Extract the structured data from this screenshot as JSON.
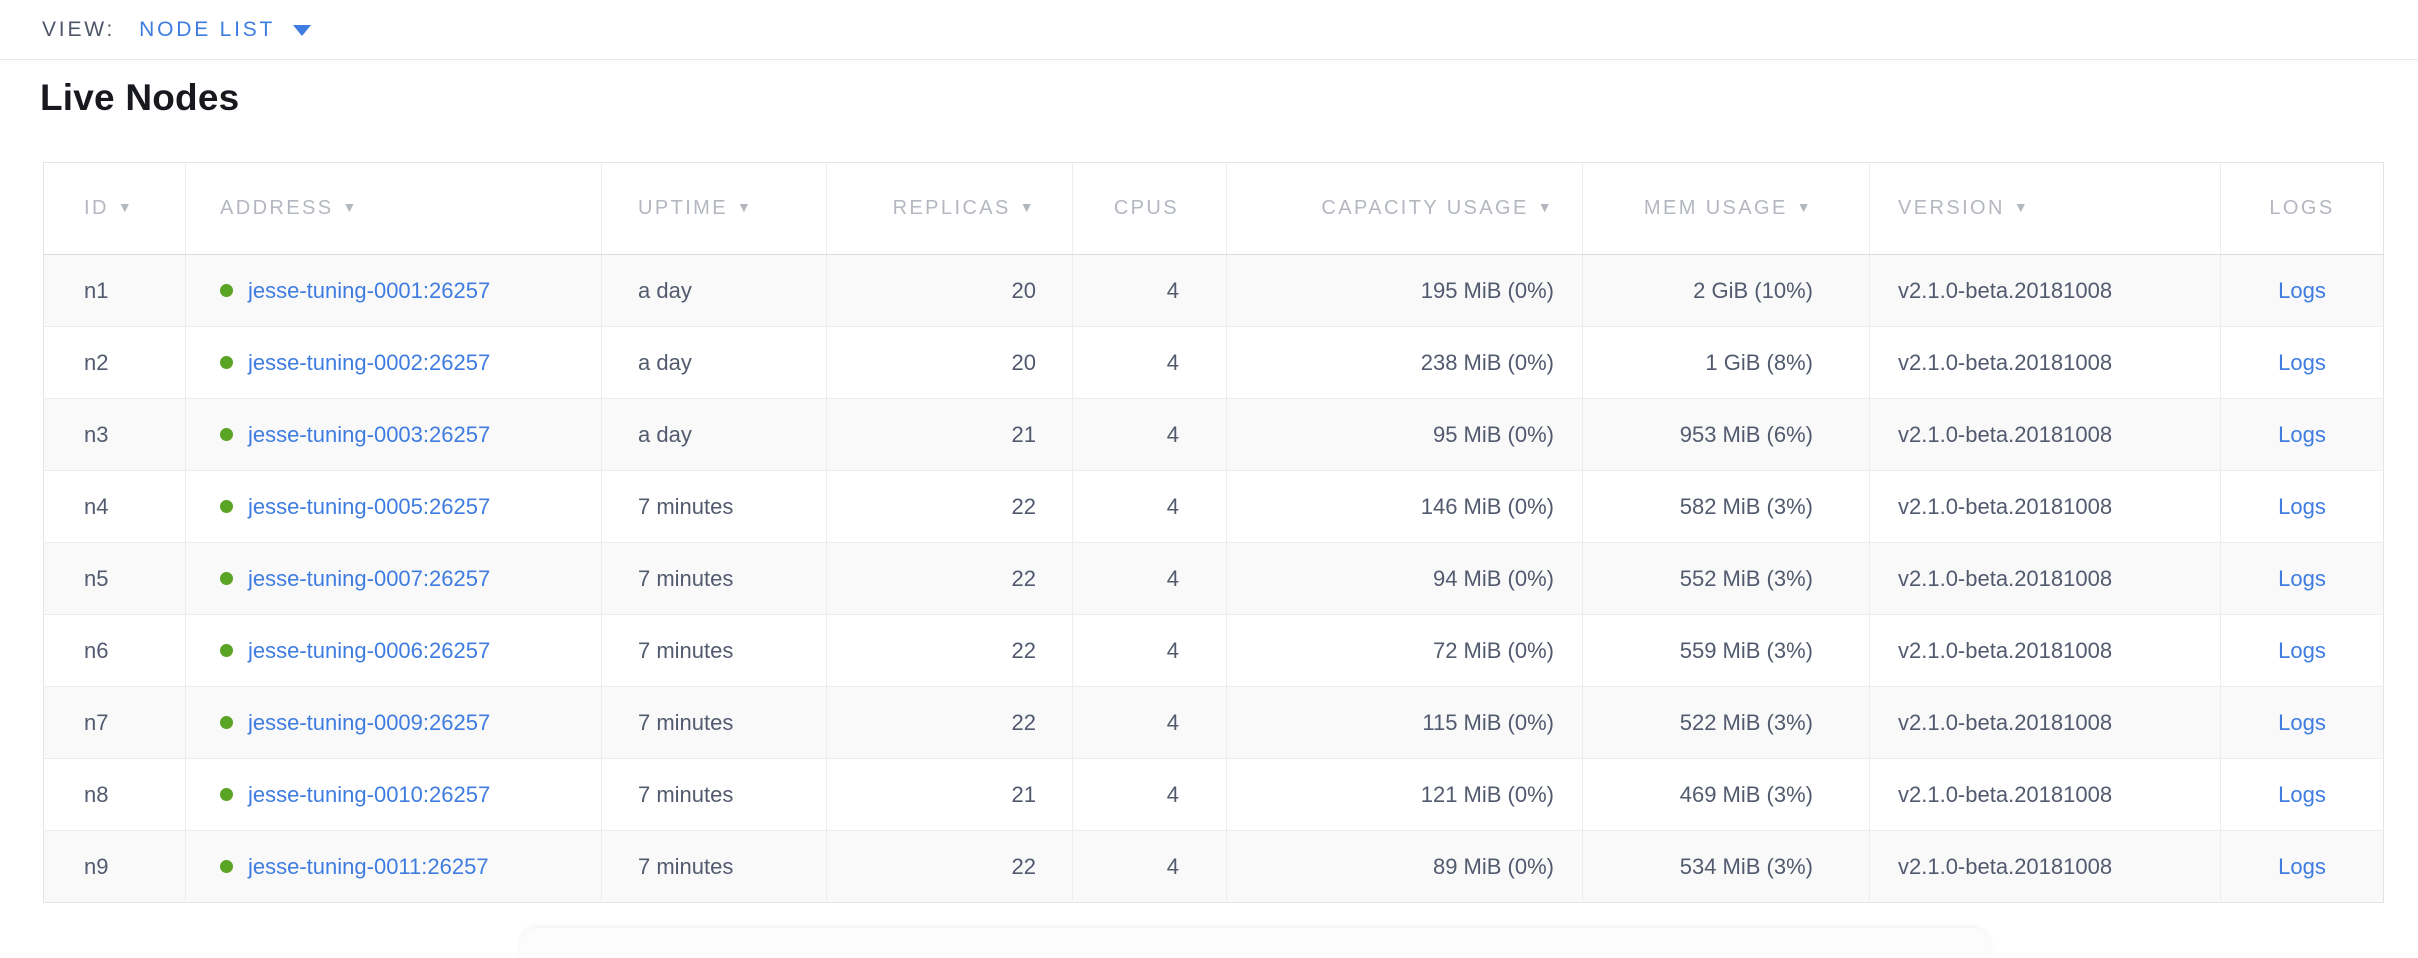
{
  "view_bar": {
    "label": "VIEW:",
    "selected": "NODE LIST"
  },
  "page": {
    "title": "Live Nodes"
  },
  "table": {
    "sort_icon": "▼",
    "columns": [
      {
        "key": "id",
        "label": "ID",
        "sortable": true
      },
      {
        "key": "address",
        "label": "ADDRESS",
        "sortable": true
      },
      {
        "key": "uptime",
        "label": "UPTIME",
        "sortable": true
      },
      {
        "key": "replicas",
        "label": "REPLICAS",
        "sortable": true
      },
      {
        "key": "cpus",
        "label": "CPUS",
        "sortable": false
      },
      {
        "key": "capacity",
        "label": "CAPACITY USAGE",
        "sortable": true
      },
      {
        "key": "mem",
        "label": "MEM USAGE",
        "sortable": true
      },
      {
        "key": "version",
        "label": "VERSION",
        "sortable": true
      },
      {
        "key": "logs",
        "label": "LOGS",
        "sortable": false
      }
    ],
    "rows": [
      {
        "id": "n1",
        "status": "live",
        "address": "jesse-tuning-0001:26257",
        "uptime": "a day",
        "replicas": "20",
        "cpus": "4",
        "capacity": "195 MiB (0%)",
        "mem": "2 GiB (10%)",
        "version": "v2.1.0-beta.20181008",
        "logs": "Logs"
      },
      {
        "id": "n2",
        "status": "live",
        "address": "jesse-tuning-0002:26257",
        "uptime": "a day",
        "replicas": "20",
        "cpus": "4",
        "capacity": "238 MiB (0%)",
        "mem": "1 GiB (8%)",
        "version": "v2.1.0-beta.20181008",
        "logs": "Logs"
      },
      {
        "id": "n3",
        "status": "live",
        "address": "jesse-tuning-0003:26257",
        "uptime": "a day",
        "replicas": "21",
        "cpus": "4",
        "capacity": "95 MiB (0%)",
        "mem": "953 MiB (6%)",
        "version": "v2.1.0-beta.20181008",
        "logs": "Logs"
      },
      {
        "id": "n4",
        "status": "live",
        "address": "jesse-tuning-0005:26257",
        "uptime": "7 minutes",
        "replicas": "22",
        "cpus": "4",
        "capacity": "146 MiB (0%)",
        "mem": "582 MiB (3%)",
        "version": "v2.1.0-beta.20181008",
        "logs": "Logs"
      },
      {
        "id": "n5",
        "status": "live",
        "address": "jesse-tuning-0007:26257",
        "uptime": "7 minutes",
        "replicas": "22",
        "cpus": "4",
        "capacity": "94 MiB (0%)",
        "mem": "552 MiB (3%)",
        "version": "v2.1.0-beta.20181008",
        "logs": "Logs"
      },
      {
        "id": "n6",
        "status": "live",
        "address": "jesse-tuning-0006:26257",
        "uptime": "7 minutes",
        "replicas": "22",
        "cpus": "4",
        "capacity": "72 MiB (0%)",
        "mem": "559 MiB (3%)",
        "version": "v2.1.0-beta.20181008",
        "logs": "Logs"
      },
      {
        "id": "n7",
        "status": "live",
        "address": "jesse-tuning-0009:26257",
        "uptime": "7 minutes",
        "replicas": "22",
        "cpus": "4",
        "capacity": "115 MiB (0%)",
        "mem": "522 MiB (3%)",
        "version": "v2.1.0-beta.20181008",
        "logs": "Logs"
      },
      {
        "id": "n8",
        "status": "live",
        "address": "jesse-tuning-0010:26257",
        "uptime": "7 minutes",
        "replicas": "21",
        "cpus": "4",
        "capacity": "121 MiB (0%)",
        "mem": "469 MiB (3%)",
        "version": "v2.1.0-beta.20181008",
        "logs": "Logs"
      },
      {
        "id": "n9",
        "status": "live",
        "address": "jesse-tuning-0011:26257",
        "uptime": "7 minutes",
        "replicas": "22",
        "cpus": "4",
        "capacity": "89 MiB (0%)",
        "mem": "534 MiB (3%)",
        "version": "v2.1.0-beta.20181008",
        "logs": "Logs"
      }
    ]
  },
  "colors": {
    "accent_blue": "#3e7ce0",
    "live_green": "#5ba324",
    "header_gray": "#b3b7bf",
    "cell_text": "#525a6e"
  }
}
